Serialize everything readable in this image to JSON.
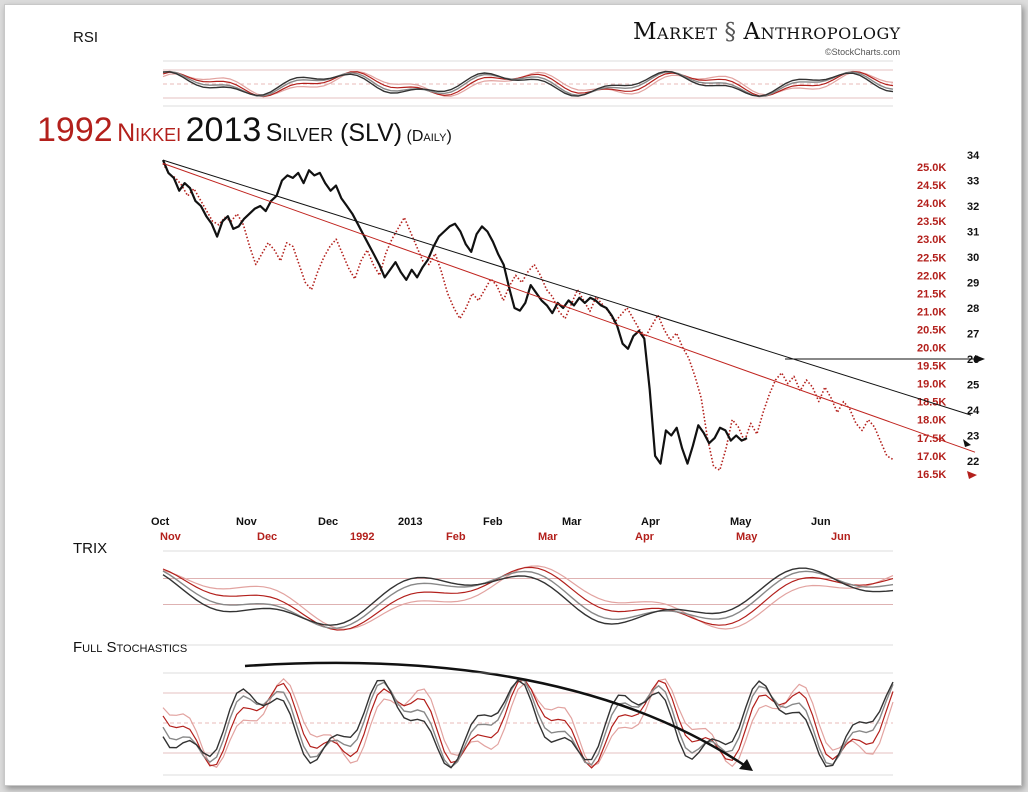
{
  "brand": {
    "left": "Market",
    "right": "Anthropology",
    "credit": "©StockCharts.com"
  },
  "title": {
    "part1": "1992",
    "part2": "Nikkei",
    "part3": "2013",
    "part4": "Silver (SLV)",
    "part5": "(Daily)"
  },
  "panels": {
    "rsi": "RSI",
    "trix": "TRIX",
    "stoch": "Full Stochastics"
  },
  "colors": {
    "silver": "#111111",
    "nikkei": "#b3201c",
    "trendline_silver": "#111111",
    "trendline_nikkei": "#c0241f"
  },
  "chart_data": {
    "type": "line",
    "x_labels_black": [
      "Oct",
      "Nov",
      "Dec",
      "2013",
      "Feb",
      "Mar",
      "Apr",
      "May",
      "Jun"
    ],
    "x_labels_red": [
      "Nov",
      "Dec",
      "1992",
      "Feb",
      "Mar",
      "Apr",
      "May",
      "Jun"
    ],
    "y_right_black": [
      34,
      33,
      32,
      31,
      30,
      29,
      28,
      27,
      26,
      25,
      24,
      23,
      22
    ],
    "y_right_red": [
      "25.0K",
      "24.5K",
      "24.0K",
      "23.5K",
      "23.0K",
      "22.5K",
      "22.0K",
      "21.5K",
      "21.0K",
      "20.5K",
      "20.0K",
      "19.5K",
      "19.0K",
      "18.5K",
      "18.0K",
      "17.5K",
      "17.0K",
      "16.5K"
    ],
    "series": [
      {
        "name": "Silver (SLV)",
        "style": "solid",
        "values": [
          33.8,
          33.3,
          33.1,
          32.6,
          32.9,
          32.7,
          32.2,
          32.0,
          31.6,
          31.3,
          30.8,
          31.4,
          31.6,
          31.1,
          31.2,
          31.5,
          31.7,
          31.9,
          32.0,
          31.8,
          32.2,
          32.4,
          33.0,
          33.2,
          33.1,
          33.3,
          32.9,
          33.4,
          33.2,
          33.3,
          32.9,
          32.6,
          32.8,
          32.3,
          32.0,
          31.7,
          31.3,
          30.9,
          30.5,
          30.1,
          29.7,
          29.2,
          29.5,
          29.8,
          29.4,
          29.1,
          29.5,
          29.2,
          29.6,
          29.9,
          30.4,
          30.8,
          31.0,
          31.2,
          31.3,
          31.0,
          30.5,
          30.2,
          30.9,
          31.2,
          31.0,
          30.6,
          30.1,
          29.7,
          28.8,
          28.0,
          27.9,
          28.2,
          28.9,
          28.6,
          28.3,
          28.1,
          27.8,
          28.2,
          28.0,
          28.3,
          28.1,
          28.4,
          28.2,
          28.4,
          28.3,
          28.1,
          28.0,
          27.7,
          27.3,
          26.6,
          26.4,
          26.9,
          27.1,
          26.8,
          24.8,
          22.2,
          21.9,
          23.2,
          23.0,
          23.3,
          22.5,
          21.9,
          22.6,
          23.4,
          23.1,
          22.7,
          22.9,
          23.3,
          23.2,
          22.8,
          23.0,
          22.8,
          22.9
        ]
      },
      {
        "name": "Nikkei 1992",
        "style": "dotted",
        "values": [
          25.1,
          24.8,
          24.7,
          24.5,
          24.2,
          24.4,
          24.1,
          23.8,
          23.5,
          23.4,
          23.6,
          23.5,
          23.7,
          23.4,
          22.8,
          22.3,
          22.6,
          22.9,
          22.7,
          22.4,
          22.9,
          22.8,
          22.3,
          21.8,
          21.6,
          22.1,
          22.5,
          22.8,
          23.0,
          22.6,
          22.2,
          21.9,
          22.4,
          22.7,
          22.3,
          22.0,
          22.6,
          23.0,
          23.3,
          23.6,
          23.2,
          22.8,
          22.4,
          22.3,
          22.6,
          22.1,
          21.5,
          21.1,
          20.8,
          21.1,
          21.5,
          21.3,
          21.6,
          21.9,
          21.7,
          21.3,
          21.7,
          22.0,
          21.8,
          22.1,
          22.3,
          22.0,
          21.6,
          21.4,
          21.0,
          20.8,
          21.2,
          21.6,
          21.3,
          21.0,
          21.4,
          21.2,
          21.0,
          20.7,
          20.9,
          21.1,
          20.8,
          20.5,
          20.3,
          20.6,
          20.9,
          20.5,
          20.2,
          20.4,
          20.0,
          19.7,
          19.2,
          18.6,
          17.5,
          16.7,
          16.6,
          17.2,
          18.0,
          17.8,
          17.4,
          17.9,
          17.6,
          18.2,
          18.7,
          19.1,
          19.3,
          19.0,
          19.2,
          18.8,
          19.1,
          18.9,
          18.5,
          18.9,
          18.6,
          18.2,
          18.5,
          18.3,
          17.9,
          17.7,
          18.0,
          17.8,
          17.4,
          17.0,
          16.9
        ]
      }
    ],
    "trendlines": [
      {
        "series": "Silver (SLV)",
        "from": [
          0,
          33.8
        ],
        "to": [
          137,
          23.8
        ]
      },
      {
        "series": "Nikkei 1992",
        "from": [
          0,
          25.1
        ],
        "to": [
          137,
          17.1
        ]
      },
      {
        "series": "Silver (SLV)",
        "label": "horizontal target",
        "from": [
          90,
          26.0
        ],
        "to": [
          126,
          26.0
        ]
      }
    ],
    "rsi_levels": [
      70,
      50,
      30
    ],
    "trix_levels": [
      0.2,
      0
    ],
    "stoch_levels": [
      80,
      50,
      20
    ]
  }
}
